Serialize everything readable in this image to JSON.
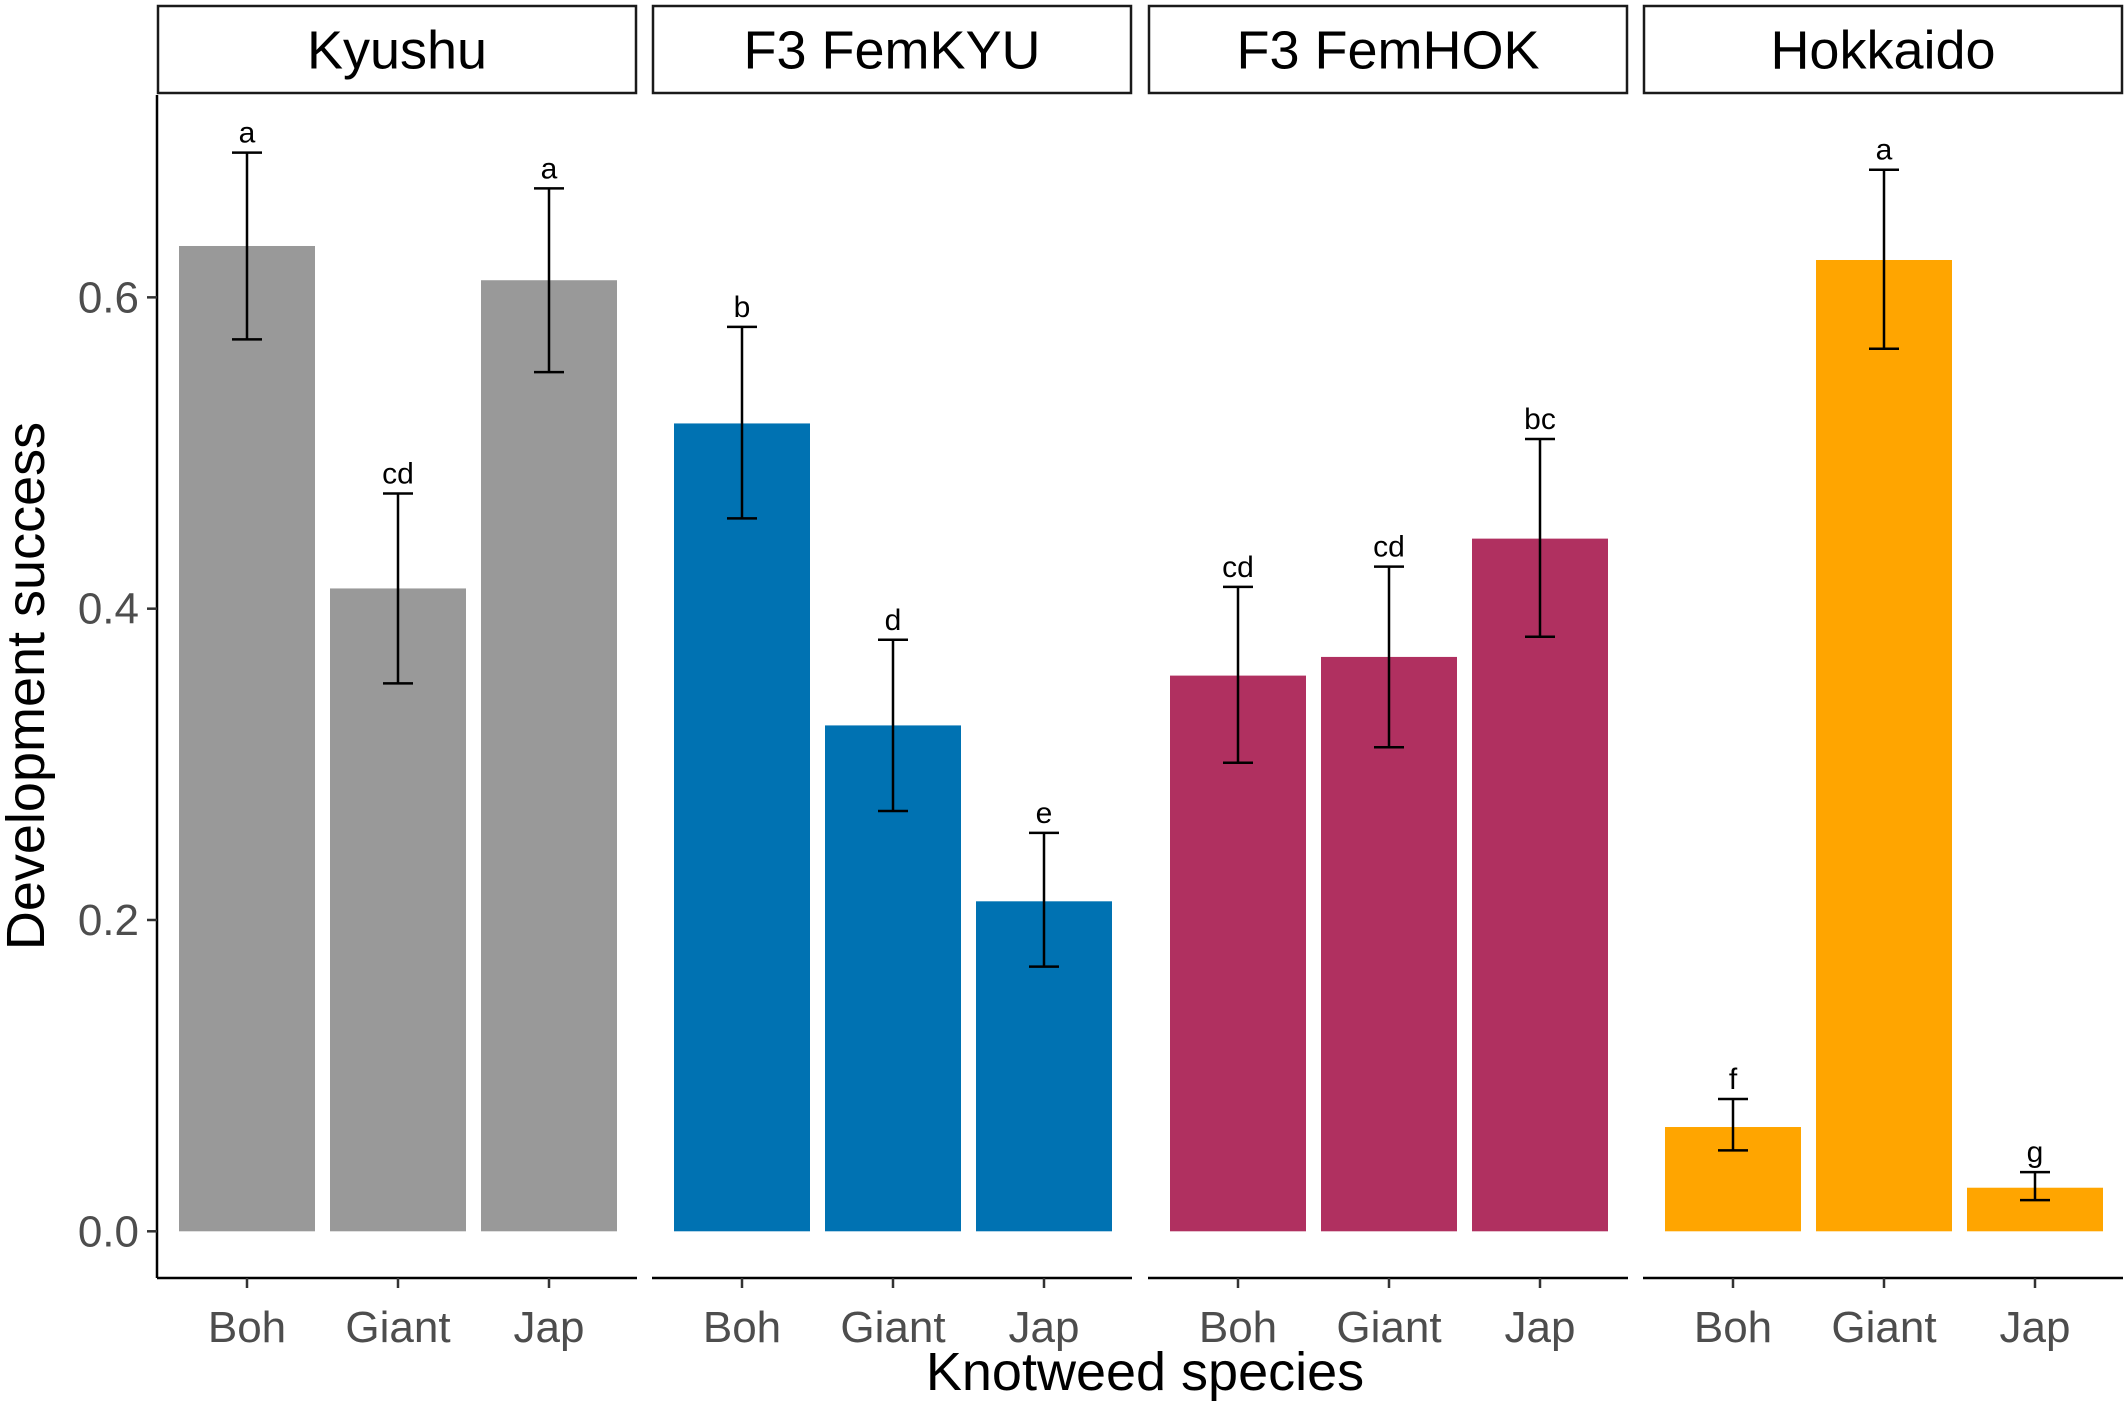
{
  "chart_data": {
    "type": "bar",
    "xlabel": "Knotweed species",
    "ylabel": "Development success",
    "ylim": [
      -0.03,
      0.73
    ],
    "yticks": [
      0.0,
      0.2,
      0.4,
      0.6
    ],
    "ytick_labels": [
      "0.0",
      "0.2",
      "0.4",
      "0.6"
    ],
    "categories": [
      "Boh",
      "Giant",
      "Jap"
    ],
    "grid": false,
    "legend": "none",
    "panels": [
      {
        "name": "Kyushu",
        "color": "#999999",
        "values": [
          0.633,
          0.413,
          0.611
        ],
        "error_low": [
          0.573,
          0.352,
          0.552
        ],
        "error_high": [
          0.693,
          0.474,
          0.67
        ],
        "labels": [
          "a",
          "cd",
          "a"
        ]
      },
      {
        "name": "F3 FemKYU",
        "color": "#0072B2",
        "values": [
          0.519,
          0.325,
          0.212
        ],
        "error_low": [
          0.458,
          0.27,
          0.17
        ],
        "error_high": [
          0.581,
          0.38,
          0.256
        ],
        "labels": [
          "b",
          "d",
          "e"
        ]
      },
      {
        "name": "F3 FemHOK",
        "color": "#B03060",
        "values": [
          0.357,
          0.369,
          0.445
        ],
        "error_low": [
          0.301,
          0.311,
          0.382
        ],
        "error_high": [
          0.414,
          0.427,
          0.509
        ],
        "labels": [
          "cd",
          "cd",
          "bc"
        ]
      },
      {
        "name": "Hokkaido",
        "color": "#FFA500",
        "values": [
          0.067,
          0.624,
          0.028
        ],
        "error_low": [
          0.052,
          0.567,
          0.02
        ],
        "error_high": [
          0.085,
          0.682,
          0.038
        ],
        "labels": [
          "f",
          "a",
          "g"
        ]
      }
    ]
  }
}
